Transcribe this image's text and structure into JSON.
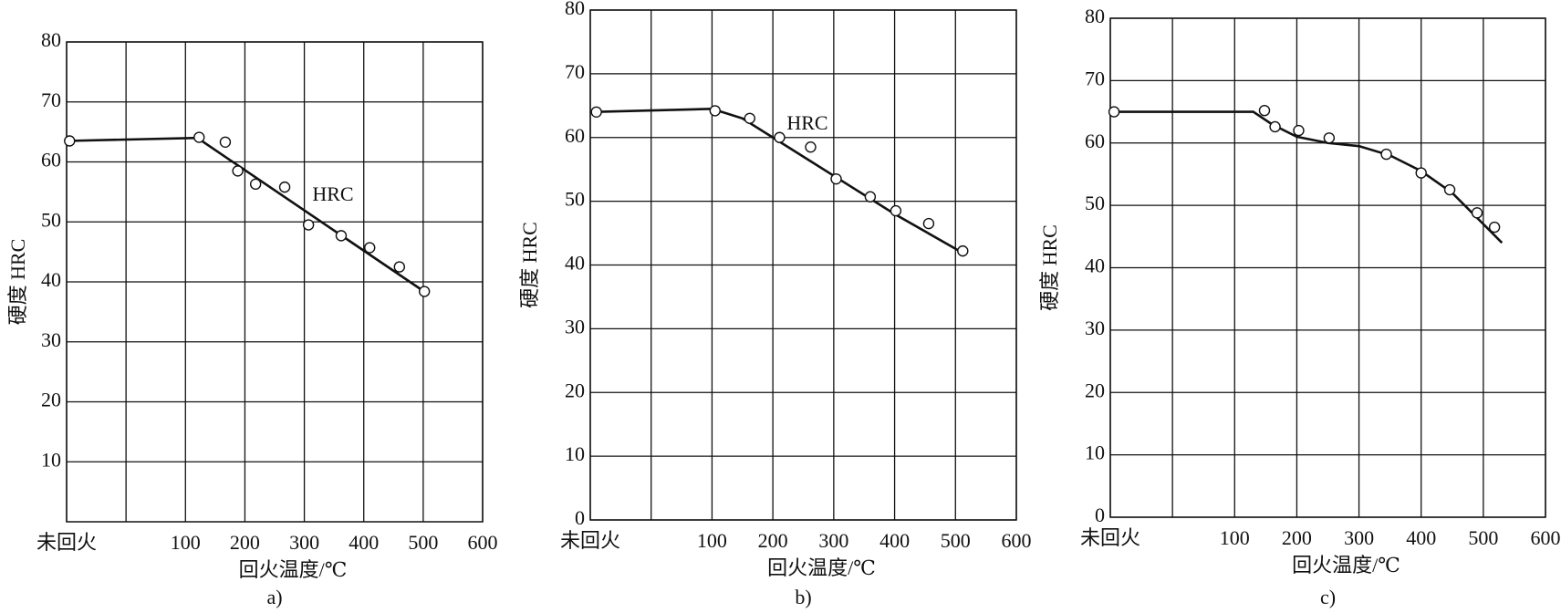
{
  "chart_data": [
    {
      "type": "line",
      "caption": "a)",
      "x_label": "回火温度/℃",
      "y_label": "硬度 HRC",
      "annotation": "HRC",
      "xlim": [
        -100,
        600
      ],
      "xticks": [
        {
          "value": -100,
          "label": "未回火"
        },
        {
          "value": 0,
          "label": null
        },
        100,
        200,
        300,
        400,
        500,
        600
      ],
      "ylim": [
        0,
        80
      ],
      "yticks": [
        10,
        20,
        30,
        40,
        50,
        60,
        70,
        80
      ],
      "curve": {
        "x": [
          -100,
          120,
          500
        ],
        "y": [
          63.5,
          64,
          38.5
        ]
      },
      "points": {
        "x": [
          -95,
          123,
          167,
          188,
          218,
          267,
          307,
          362,
          410,
          460,
          502
        ],
        "y": [
          63.5,
          64.1,
          63.3,
          58.5,
          56.3,
          55.8,
          49.5,
          47.7,
          45.7,
          42.5,
          38.4
        ]
      }
    },
    {
      "type": "line",
      "caption": "b)",
      "x_label": "回火温度/℃",
      "y_label": "硬度 HRC",
      "annotation": "HRC",
      "xlim": [
        -100,
        600
      ],
      "xticks": [
        {
          "value": -100,
          "label": "未回火"
        },
        {
          "value": 0,
          "label": null
        },
        100,
        200,
        300,
        400,
        500,
        600
      ],
      "ylim": [
        0,
        80
      ],
      "yticks": [
        0,
        10,
        20,
        30,
        40,
        50,
        60,
        70,
        80
      ],
      "curve": {
        "x": [
          -100,
          100,
          150,
          200,
          300,
          400,
          510
        ],
        "y": [
          64,
          64.5,
          63,
          60,
          54,
          48,
          42
        ]
      },
      "points": {
        "x": [
          -90,
          105,
          162,
          211,
          262,
          304,
          360,
          402,
          456,
          512
        ],
        "y": [
          64,
          64.2,
          63,
          60,
          58.5,
          53.5,
          50.7,
          48.5,
          46.5,
          42.2
        ]
      }
    },
    {
      "type": "line",
      "caption": "c)",
      "x_label": "回火温度/℃",
      "y_label": "硬度 HRC",
      "xlim": [
        -100,
        600
      ],
      "xticks": [
        {
          "value": -100,
          "label": "未回火"
        },
        {
          "value": 0,
          "label": null
        },
        100,
        200,
        300,
        400,
        500,
        600
      ],
      "ylim": [
        0,
        80
      ],
      "yticks": [
        0,
        10,
        20,
        30,
        40,
        50,
        60,
        70,
        80
      ],
      "curve": {
        "x": [
          -100,
          130,
          160,
          200,
          250,
          300,
          350,
          400,
          450,
          530
        ],
        "y": [
          65,
          65,
          63,
          61,
          60,
          59.5,
          58,
          55.5,
          52,
          44
        ]
      },
      "points": {
        "x": [
          -94,
          148,
          165,
          203,
          252,
          344,
          400,
          446,
          490,
          518
        ],
        "y": [
          65,
          65.2,
          62.6,
          62,
          60.8,
          58.2,
          55.2,
          52.5,
          48.8,
          46.5
        ]
      }
    }
  ]
}
